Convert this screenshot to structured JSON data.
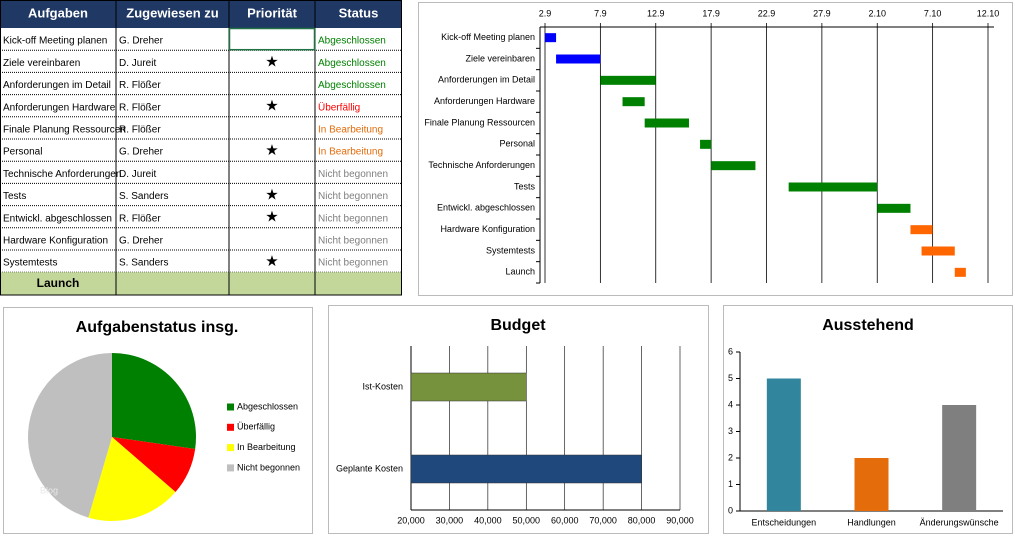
{
  "table": {
    "columns": [
      "Aufgaben",
      "Zugewiesen zu",
      "Priorität",
      "Status"
    ],
    "rows": [
      [
        "Kick-off Meeting planen",
        "G. Dreher",
        null,
        "Abgeschlossen"
      ],
      [
        "Ziele vereinbaren",
        "D. Jureit",
        "★",
        "Abgeschlossen"
      ],
      [
        "Anforderungen  im Detail",
        "R. Flößer",
        null,
        "Abgeschlossen"
      ],
      [
        "Anforderungen Hardware",
        "R. Flößer",
        "★",
        "Überfällig"
      ],
      [
        "Finale Planung Ressourcen",
        "R. Flößer",
        null,
        "In Bearbeitung"
      ],
      [
        "Personal",
        "G. Dreher",
        "★",
        "In Bearbeitung"
      ],
      [
        "Technische Anforderungen",
        "D. Jureit",
        null,
        "Nicht begonnen"
      ],
      [
        "Tests",
        "S. Sanders",
        "★",
        "Nicht begonnen"
      ],
      [
        "Entwickl. abgeschlossen",
        "R. Flößer",
        "★",
        "Nicht begonnen"
      ],
      [
        "Hardware Konfiguration",
        "G. Dreher",
        null,
        "Nicht begonnen"
      ],
      [
        "Systemtests",
        "S. Sanders",
        "★",
        "Nicht begonnen"
      ]
    ],
    "footer": "Launch",
    "status_colors": {
      "Abgeschlossen": "#008000",
      "Überfällig": "#ff0000",
      "In Bearbeitung": "#e46c0a",
      "Nicht begonnen": "#7f7f7f"
    }
  },
  "chart_data": [
    {
      "type": "gantt",
      "categories": [
        "Kick-off Meeting planen",
        "Ziele vereinbaren",
        "Anforderungen  im Detail",
        "Anforderungen Hardware",
        "Finale Planung Ressourcen",
        "Personal",
        "Technische Anforderungen",
        "Tests",
        "Entwickl. abgeschlossen",
        "Hardware Konfiguration",
        "Systemtests",
        "Launch"
      ],
      "start": [
        0,
        1,
        5,
        7,
        9,
        14,
        15,
        22,
        30,
        33,
        34,
        37
      ],
      "end": [
        1,
        5,
        10,
        9,
        13,
        15,
        19,
        30,
        33,
        35,
        37,
        38
      ],
      "colors": [
        "#0000ff",
        "#0000ff",
        "#008000",
        "#008000",
        "#008000",
        "#008000",
        "#008000",
        "#008000",
        "#008000",
        "#ff6600",
        "#ff6600",
        "#ff6600"
      ],
      "xlim": [
        0,
        40
      ],
      "xticks": [
        {
          "value": 0,
          "label": "2.9"
        },
        {
          "value": 5,
          "label": "7.9"
        },
        {
          "value": 10,
          "label": "12.9"
        },
        {
          "value": 15,
          "label": "17.9"
        },
        {
          "value": 20,
          "label": "22.9"
        },
        {
          "value": 25,
          "label": "27.9"
        },
        {
          "value": 30,
          "label": "2.10"
        },
        {
          "value": 35,
          "label": "7.10"
        },
        {
          "value": 40,
          "label": "12.10"
        }
      ],
      "grid": true
    },
    {
      "type": "pie",
      "title": "Aufgabenstatus insg.",
      "categories": [
        "Abgeschlossen",
        "Überfällig",
        "In Bearbeitung",
        "Nicht begonnen"
      ],
      "values": [
        3,
        1,
        2,
        5
      ],
      "colors": [
        "#008000",
        "#ff0000",
        "#ffff00",
        "#bfbfbf"
      ],
      "watermark": "Blog",
      "legend": "right"
    },
    {
      "type": "bar",
      "orientation": "horizontal",
      "title": "Budget",
      "categories": [
        "Ist-Kosten",
        "Geplante Kosten"
      ],
      "values": [
        50000,
        80000
      ],
      "colors": [
        "#76923c",
        "#1f497d"
      ],
      "xlim": [
        20000,
        90000
      ],
      "xticks": [
        {
          "value": 20000,
          "label": "20,000"
        },
        {
          "value": 30000,
          "label": "30,000"
        },
        {
          "value": 40000,
          "label": "40,000"
        },
        {
          "value": 50000,
          "label": "50,000"
        },
        {
          "value": 60000,
          "label": "60,000"
        },
        {
          "value": 70000,
          "label": "70,000"
        },
        {
          "value": 80000,
          "label": "80,000"
        },
        {
          "value": 90000,
          "label": "90,000"
        }
      ],
      "grid": true
    },
    {
      "type": "bar",
      "orientation": "vertical",
      "title": "Ausstehend",
      "categories": [
        "Entscheidungen",
        "Handlungen",
        "Änderungswünsche"
      ],
      "values": [
        5,
        2,
        4
      ],
      "colors": [
        "#31859c",
        "#e46c0a",
        "#7f7f7f"
      ],
      "ylim": [
        0,
        6
      ],
      "yticks": [
        0,
        1,
        2,
        3,
        4,
        5,
        6
      ],
      "grid": false
    }
  ]
}
